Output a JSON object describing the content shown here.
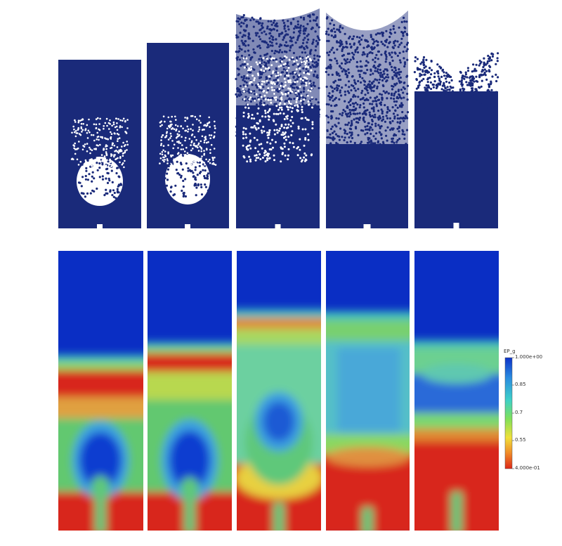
{
  "colorbar": {
    "title": "EP_g",
    "ticks": [
      "1.000e+00",
      "0.85",
      "0.7",
      "0.55",
      "4.000e-01"
    ],
    "colors": [
      "#0d32c8",
      "#2a8be0",
      "#3ed0c8",
      "#7fe05a",
      "#f0e03a",
      "#f08a28",
      "#dc2818"
    ]
  },
  "particles": {
    "color": "#1a2a7a",
    "background": "#ffffff"
  },
  "palette": {
    "blue": "#0a2ec4",
    "red": "#d8281a",
    "green": "#5ec87a"
  }
}
